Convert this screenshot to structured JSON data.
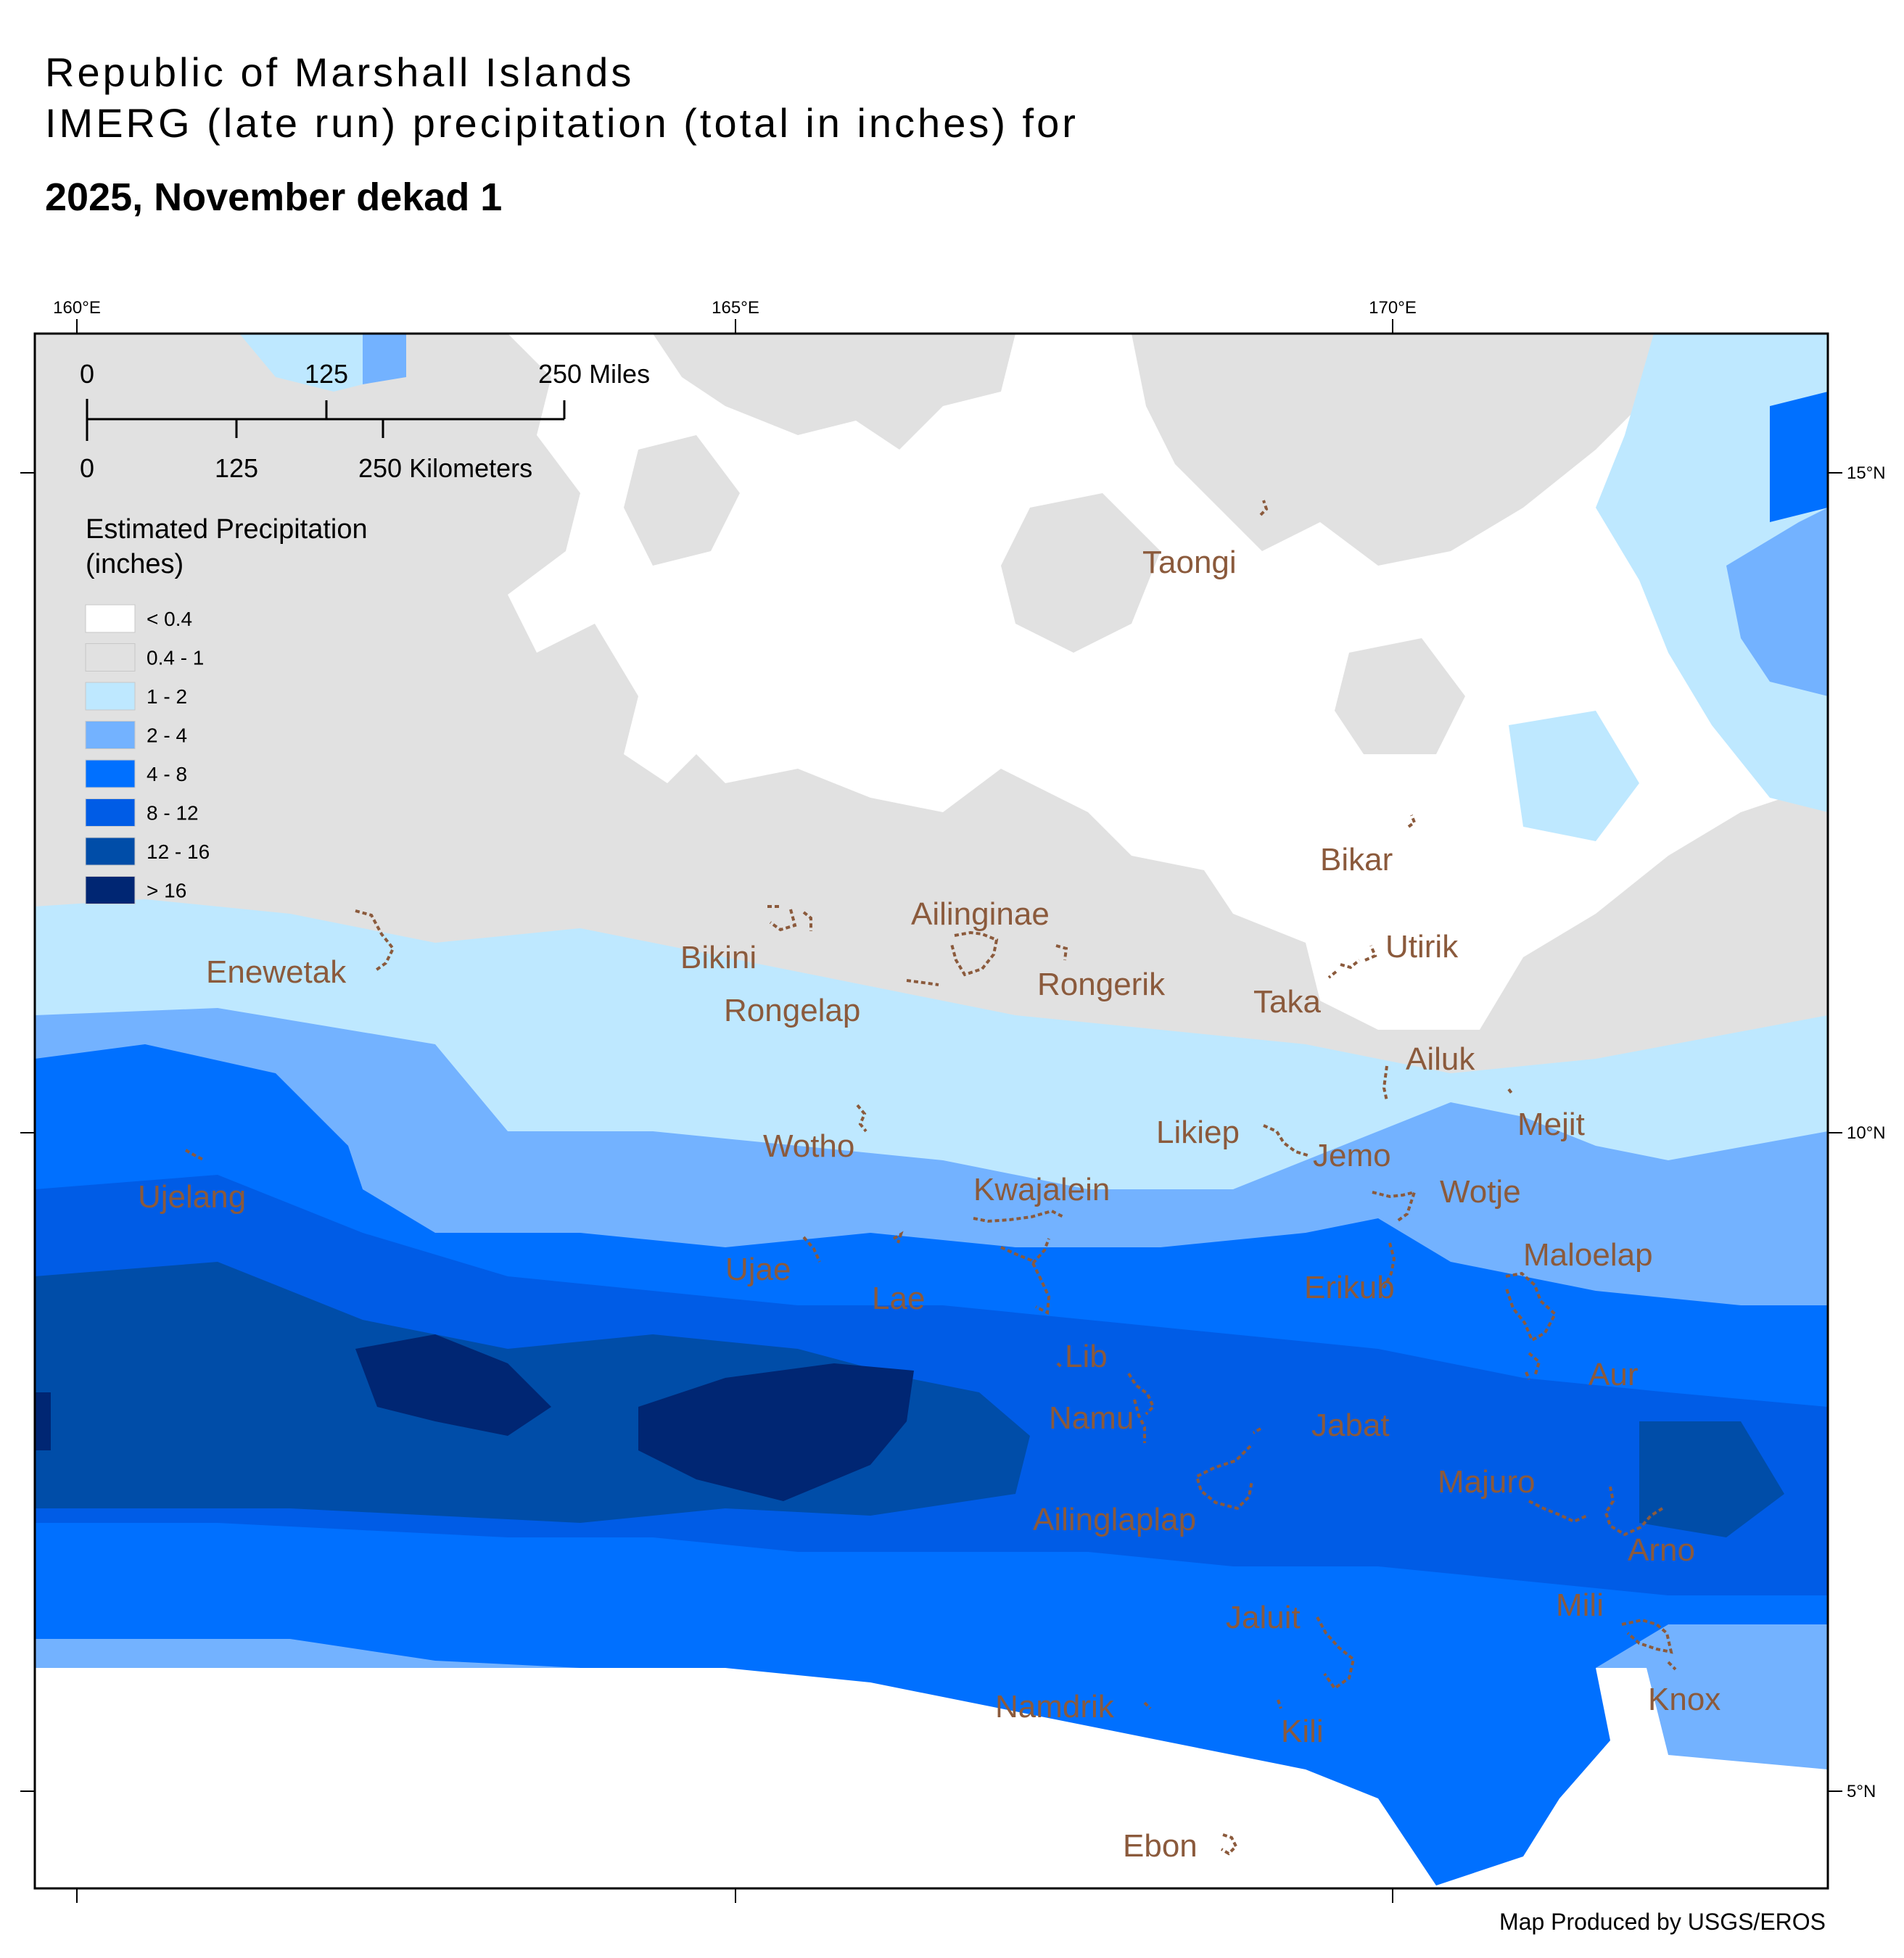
{
  "title": {
    "line1": "Republic of Marshall Islands",
    "line2": "IMERG (late run) precipitation (total in inches) for",
    "period": "2025, November dekad 1"
  },
  "credit": "Map Produced by USGS/EROS",
  "axes": {
    "longitude_labels": [
      "160°E",
      "165°E",
      "170°E"
    ],
    "latitude_labels": [
      "15°N",
      "10°N",
      "5°N"
    ]
  },
  "scale_bar": {
    "miles": [
      "0",
      "125",
      "250 Miles"
    ],
    "kilometers": [
      "0",
      "125",
      "250 Kilometers"
    ]
  },
  "legend": {
    "title_line1": "Estimated Precipitation",
    "title_line2": "(inches)",
    "classes": [
      {
        "label": "< 0.4",
        "color": "#ffffff"
      },
      {
        "label": "0.4 - 1",
        "color": "#e1e1e1"
      },
      {
        "label": "1 - 2",
        "color": "#bee8ff"
      },
      {
        "label": "2 - 4",
        "color": "#73b2ff"
      },
      {
        "label": "4 - 8",
        "color": "#0070ff"
      },
      {
        "label": "8 - 12",
        "color": "#005ce6"
      },
      {
        "label": "12 - 16",
        "color": "#004da8"
      },
      {
        "label": "> 16",
        "color": "#002673"
      }
    ]
  },
  "atolls": [
    "Taongi",
    "Bikar",
    "Enewetak",
    "Bikini",
    "Ailinginae",
    "Utirik",
    "Rongerik",
    "Rongelap",
    "Taka",
    "Ailuk",
    "Mejit",
    "Wotho",
    "Likiep",
    "Jemo",
    "Ujelang",
    "Kwajalein",
    "Wotje",
    "Maloelap",
    "Ujae",
    "Erikub",
    "Lae",
    "Lib",
    "Aur",
    "Namu",
    "Jabat",
    "Majuro",
    "Ailinglaplap",
    "Arno",
    "Mili",
    "Jaluit",
    "Knox",
    "Namdrik",
    "Kili",
    "Ebon"
  ],
  "colors": {
    "atoll_outline": "#8b5a3c",
    "atoll_label": "#8b5a3c"
  }
}
